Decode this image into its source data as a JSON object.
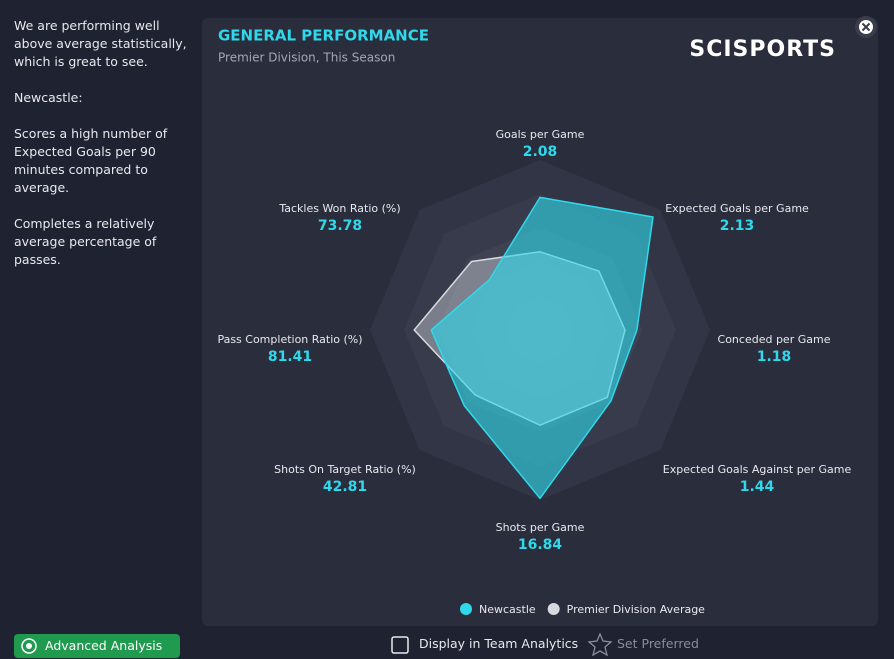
{
  "sidebar": {
    "paragraphs": [
      "We are performing well above average statistically, which is great to see.",
      "Newcastle:",
      "Scores a high number of Expected Goals per 90 minutes compared to average.",
      "Completes a relatively average percentage of passes."
    ]
  },
  "panel": {
    "brand": "SCISPORTS"
  },
  "chart_data": {
    "type": "radar",
    "title": "GENERAL PERFORMANCE",
    "subtitle": "Premier Division, This Season",
    "categories": [
      "Goals per Game",
      "Expected Goals per Game",
      "Conceded per Game",
      "Expected Goals Against per Game",
      "Shots per Game",
      "Shots On Target Ratio (%)",
      "Pass Completion Ratio (%)",
      "Tackles Won Ratio (%)"
    ],
    "category_values": [
      "2.08",
      "2.13",
      "1.18",
      "1.44",
      "16.84",
      "42.81",
      "81.41",
      "73.78"
    ],
    "rlim": [
      0,
      1
    ],
    "series": [
      {
        "name": "Premier Division Average",
        "color": "#d8d9de",
        "values": [
          0.46,
          0.49,
          0.5,
          0.56,
          0.56,
          0.54,
          0.74,
          0.57
        ]
      },
      {
        "name": "Newcastle",
        "color": "#2fd8ea",
        "values": [
          0.78,
          0.94,
          0.57,
          0.59,
          0.99,
          0.63,
          0.64,
          0.42
        ]
      }
    ]
  },
  "footer": {
    "advanced": "Advanced Analysis",
    "display": "Display in Team Analytics",
    "preferred": "Set Preferred"
  }
}
